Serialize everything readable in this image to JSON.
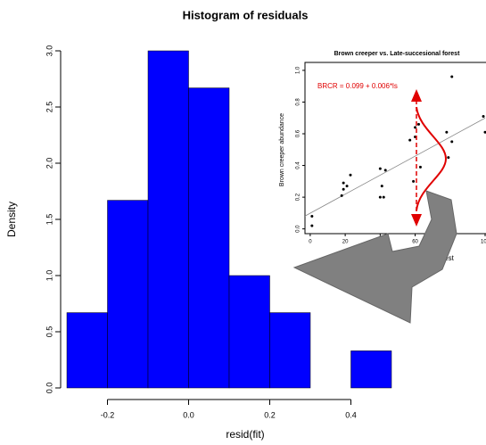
{
  "chart_data": [
    {
      "type": "histogram",
      "title": "Histogram of residuals",
      "x_label": "resid(fit)",
      "y_label": "Density",
      "bins": [
        -0.3,
        -0.2,
        -0.1,
        0,
        0.1,
        0.2,
        0.3,
        0.4,
        0.5
      ],
      "values": [
        0.67,
        1.67,
        3.0,
        2.67,
        1.0,
        0.67,
        0,
        0.33
      ],
      "color": "#0000ff",
      "xlim": [
        -0.3,
        0.5
      ],
      "xticks": [
        -0.2,
        {
          "value": 0,
          "label": "0.0"
        },
        0.2,
        0.4
      ],
      "ylim": [
        0,
        3
      ],
      "yticks": [
        {
          "value": 0,
          "label": "0.0"
        },
        0.5,
        {
          "value": 1,
          "label": "1.0"
        },
        1.5,
        {
          "value": 2,
          "label": "2.0"
        },
        2.5,
        {
          "value": 3,
          "label": "3.0"
        }
      ]
    },
    {
      "type": "scatter",
      "title": "Brown creeper vs. Late-succesional forest",
      "x_label": "orest",
      "y_label": "Brown creeper abundance",
      "annotation": "BRCR = 0.099 + 0.006*ls",
      "fit": {
        "intercept": 0.099,
        "slope": 0.006
      },
      "x": [
        1,
        1,
        18,
        19,
        21,
        19,
        23,
        40,
        43,
        41,
        40,
        42,
        60,
        60,
        62,
        63,
        57,
        59,
        81,
        78,
        79,
        81,
        100,
        99
      ],
      "values": [
        0.02,
        0.08,
        0.21,
        0.25,
        0.27,
        0.29,
        0.34,
        0.38,
        0.37,
        0.27,
        0.2,
        0.2,
        0.64,
        0.58,
        0.66,
        0.39,
        0.56,
        0.3,
        0.96,
        0.61,
        0.45,
        0.55,
        0.61,
        0.71
      ],
      "color": "#000000",
      "xlim": [
        -3,
        100
      ],
      "xticks": [
        0,
        20,
        40,
        60,
        80,
        100
      ],
      "ylim": [
        -0.03,
        1.05
      ],
      "yticks": [
        {
          "value": 0,
          "label": "0.0"
        },
        0.2,
        0.4,
        0.6,
        0.8,
        {
          "value": 1,
          "label": "1.0"
        }
      ]
    }
  ]
}
